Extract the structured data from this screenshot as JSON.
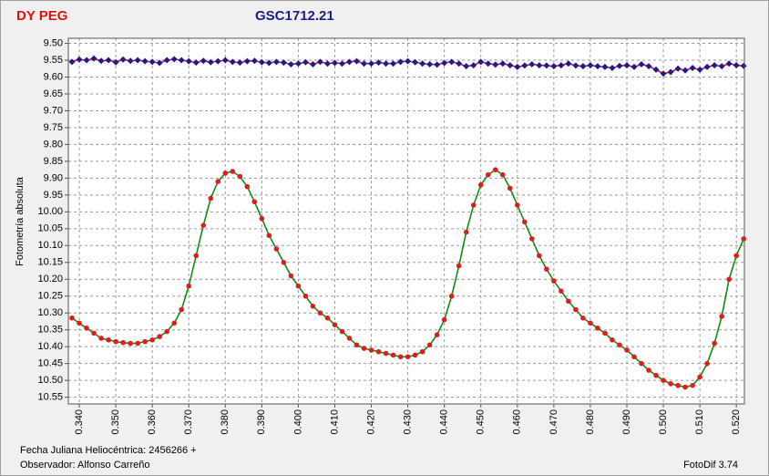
{
  "chart_data": {
    "type": "line",
    "title": "DY PEG",
    "subtitle": "GSC1712.21",
    "y_label": "Fotometría absoluta",
    "x_note": "Fecha Juliana Heliocéntrica: 2456266 +",
    "observer": "Observador: Alfonso Carreño",
    "software": "FotoDif 3.74",
    "y_inverted": true,
    "grid": true,
    "xlim": [
      0.337,
      0.5222
    ],
    "ylim": [
      9.485,
      10.57
    ],
    "xticks": [
      {
        "value": 0.34,
        "label": "0.340"
      },
      {
        "value": 0.35,
        "label": "0.350"
      },
      {
        "value": 0.36,
        "label": "0.360"
      },
      {
        "value": 0.37,
        "label": "0.370"
      },
      {
        "value": 0.38,
        "label": "0.380"
      },
      {
        "value": 0.39,
        "label": "0.390"
      },
      {
        "value": 0.4,
        "label": "0.400"
      },
      {
        "value": 0.41,
        "label": "0.410"
      },
      {
        "value": 0.42,
        "label": "0.420"
      },
      {
        "value": 0.43,
        "label": "0.430"
      },
      {
        "value": 0.44,
        "label": "0.440"
      },
      {
        "value": 0.45,
        "label": "0.450"
      },
      {
        "value": 0.46,
        "label": "0.460"
      },
      {
        "value": 0.47,
        "label": "0.470"
      },
      {
        "value": 0.48,
        "label": "0.480"
      },
      {
        "value": 0.49,
        "label": "0.490"
      },
      {
        "value": 0.5,
        "label": "0.500"
      },
      {
        "value": 0.51,
        "label": "0.510"
      },
      {
        "value": 0.52,
        "label": "0.520"
      }
    ],
    "yticks": [
      {
        "value": 9.5,
        "label": "9.50"
      },
      {
        "value": 9.55,
        "label": "9.55"
      },
      {
        "value": 9.6,
        "label": "9.60"
      },
      {
        "value": 9.65,
        "label": "9.65"
      },
      {
        "value": 9.7,
        "label": "9.70"
      },
      {
        "value": 9.75,
        "label": "9.75"
      },
      {
        "value": 9.8,
        "label": "9.80"
      },
      {
        "value": 9.85,
        "label": "9.85"
      },
      {
        "value": 9.9,
        "label": "9.90"
      },
      {
        "value": 9.95,
        "label": "9.95"
      },
      {
        "value": 10,
        "label": "10.00"
      },
      {
        "value": 10.05,
        "label": "10.05"
      },
      {
        "value": 10.1,
        "label": "10.10"
      },
      {
        "value": 10.15,
        "label": "10.15"
      },
      {
        "value": 10.2,
        "label": "10.20"
      },
      {
        "value": 10.25,
        "label": "10.25"
      },
      {
        "value": 10.3,
        "label": "10.30"
      },
      {
        "value": 10.35,
        "label": "10.35"
      },
      {
        "value": 10.4,
        "label": "10.40"
      },
      {
        "value": 10.45,
        "label": "10.45"
      },
      {
        "value": 10.5,
        "label": "10.50"
      },
      {
        "value": 10.55,
        "label": "10.55"
      }
    ],
    "x": [
      0.338,
      0.34,
      0.342,
      0.344,
      0.346,
      0.348,
      0.35,
      0.352,
      0.354,
      0.356,
      0.358,
      0.36,
      0.362,
      0.364,
      0.366,
      0.368,
      0.37,
      0.372,
      0.374,
      0.376,
      0.378,
      0.38,
      0.382,
      0.384,
      0.386,
      0.388,
      0.39,
      0.392,
      0.394,
      0.396,
      0.398,
      0.4,
      0.402,
      0.404,
      0.406,
      0.408,
      0.41,
      0.412,
      0.414,
      0.416,
      0.418,
      0.42,
      0.422,
      0.424,
      0.426,
      0.428,
      0.43,
      0.432,
      0.434,
      0.436,
      0.438,
      0.44,
      0.442,
      0.444,
      0.446,
      0.448,
      0.45,
      0.452,
      0.454,
      0.456,
      0.458,
      0.46,
      0.462,
      0.464,
      0.466,
      0.468,
      0.47,
      0.472,
      0.474,
      0.476,
      0.478,
      0.48,
      0.482,
      0.484,
      0.486,
      0.488,
      0.49,
      0.492,
      0.494,
      0.496,
      0.498,
      0.5,
      0.502,
      0.504,
      0.506,
      0.508,
      0.51,
      0.512,
      0.514,
      0.516,
      0.518,
      0.52,
      0.522
    ],
    "series": [
      {
        "color": "#e8102a",
        "marker_color": "#1c1c8c",
        "marker": "diamond",
        "values": [
          9.555,
          9.548,
          9.55,
          9.545,
          9.552,
          9.55,
          9.556,
          9.548,
          9.552,
          9.55,
          9.553,
          9.555,
          9.558,
          9.55,
          9.547,
          9.55,
          9.553,
          9.557,
          9.552,
          9.556,
          9.553,
          9.55,
          9.555,
          9.557,
          9.553,
          9.552,
          9.556,
          9.558,
          9.555,
          9.557,
          9.562,
          9.56,
          9.556,
          9.562,
          9.555,
          9.56,
          9.558,
          9.56,
          9.555,
          9.553,
          9.56,
          9.56,
          9.557,
          9.56,
          9.56,
          9.555,
          9.553,
          9.556,
          9.56,
          9.562,
          9.563,
          9.558,
          9.555,
          9.56,
          9.568,
          9.565,
          9.555,
          9.56,
          9.563,
          9.56,
          9.565,
          9.57,
          9.566,
          9.562,
          9.565,
          9.566,
          9.568,
          9.565,
          9.56,
          9.566,
          9.568,
          9.565,
          9.568,
          9.57,
          9.573,
          9.567,
          9.565,
          9.57,
          9.562,
          9.568,
          9.578,
          9.59,
          9.585,
          9.575,
          9.58,
          9.573,
          9.578,
          9.57,
          9.565,
          9.568,
          9.56,
          9.565,
          9.567
        ]
      },
      {
        "color": "#148c14",
        "marker_color": "#e31b1b",
        "marker": "circle",
        "values": [
          10.315,
          10.33,
          10.345,
          10.36,
          10.375,
          10.38,
          10.385,
          10.388,
          10.39,
          10.39,
          10.385,
          10.38,
          10.37,
          10.355,
          10.33,
          10.29,
          10.22,
          10.13,
          10.04,
          9.96,
          9.91,
          9.885,
          9.88,
          9.895,
          9.925,
          9.97,
          10.02,
          10.07,
          10.11,
          10.15,
          10.19,
          10.22,
          10.25,
          10.28,
          10.3,
          10.315,
          10.335,
          10.355,
          10.375,
          10.395,
          10.405,
          10.41,
          10.415,
          10.42,
          10.425,
          10.43,
          10.43,
          10.425,
          10.415,
          10.395,
          10.365,
          10.32,
          10.25,
          10.16,
          10.06,
          9.98,
          9.92,
          9.89,
          9.875,
          9.89,
          9.93,
          9.98,
          10.03,
          10.08,
          10.13,
          10.17,
          10.205,
          10.235,
          10.265,
          10.29,
          10.315,
          10.33,
          10.345,
          10.36,
          10.38,
          10.395,
          10.41,
          10.43,
          10.45,
          10.47,
          10.485,
          10.5,
          10.51,
          10.515,
          10.52,
          10.515,
          10.49,
          10.45,
          10.39,
          10.31,
          10.2,
          10.13,
          10.08
        ]
      }
    ]
  }
}
